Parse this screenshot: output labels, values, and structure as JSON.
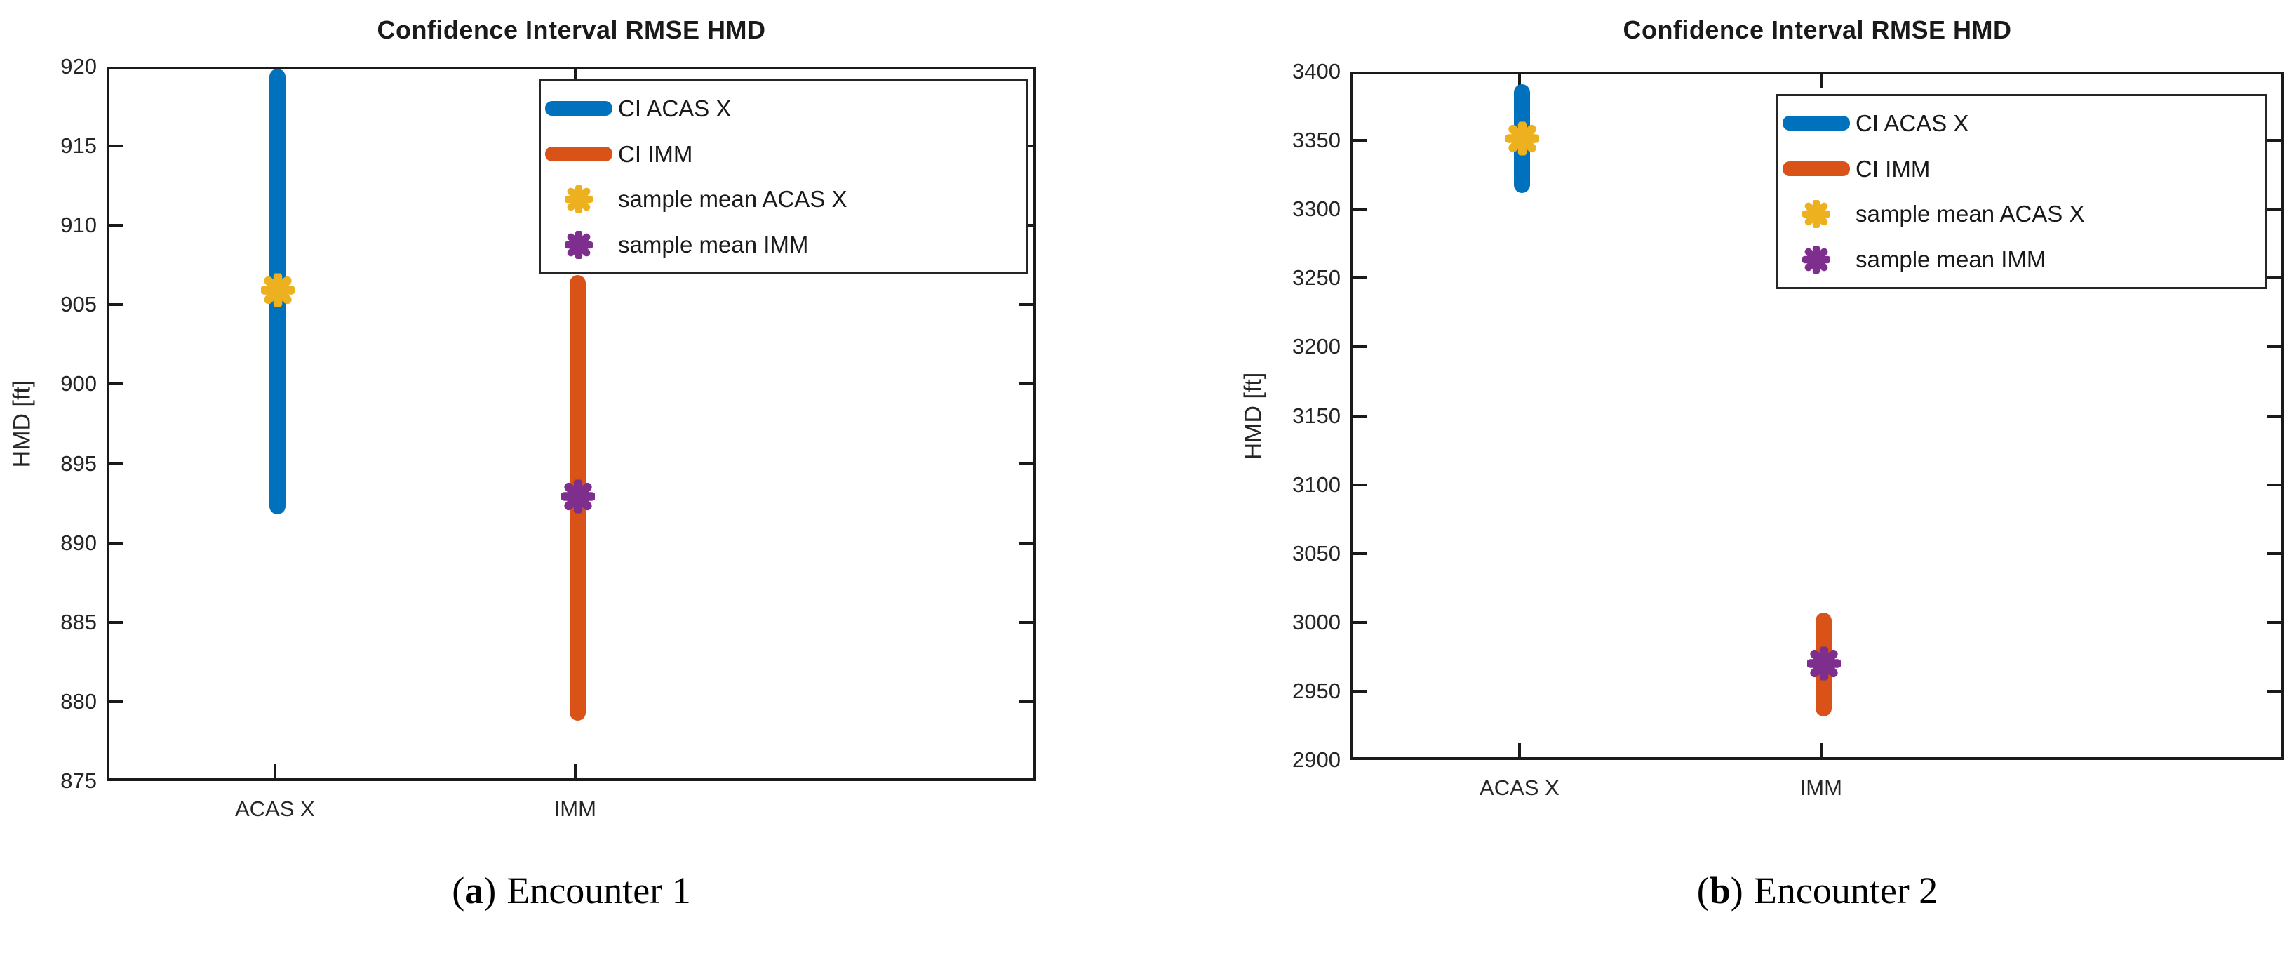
{
  "figure_caption_row": {
    "left": {
      "open": "(",
      "letter": "a",
      "close": ")",
      "text": "Encounter 1"
    },
    "right": {
      "open": "(",
      "letter": "b",
      "close": ")",
      "text": "Encounter 2"
    }
  },
  "colors": {
    "ci_acas_x": "#0072BD",
    "ci_imm": "#D95319",
    "mean_acas_x": "#EDB120",
    "mean_imm": "#7E2F8E",
    "axis": "#1a1a1a"
  },
  "chart_data": [
    {
      "type": "bar",
      "subtype": "confidence-interval-bars-with-mean-markers",
      "title": "Confidence Interval RMSE HMD",
      "xlabel": "",
      "ylabel": "HMD [ft]",
      "categories": [
        "ACAS X",
        "IMM"
      ],
      "ylim": [
        875,
        920
      ],
      "ytick_step": 5,
      "yticks": [
        875,
        880,
        885,
        890,
        895,
        900,
        905,
        910,
        915,
        920
      ],
      "grid": false,
      "legend_position": "top-right-inside",
      "series": [
        {
          "name": "CI ACAS X",
          "kind": "interval",
          "category_index": 0,
          "low": 892.5,
          "high": 919.5,
          "color": "#0072BD"
        },
        {
          "name": "CI IMM",
          "kind": "interval",
          "category_index": 1,
          "low": 879.5,
          "high": 906.5,
          "color": "#D95319"
        },
        {
          "name": "sample mean ACAS X",
          "kind": "point",
          "marker": "asterisk",
          "category_index": 0,
          "value": 906,
          "color": "#EDB120"
        },
        {
          "name": "sample mean IMM",
          "kind": "point",
          "marker": "asterisk",
          "category_index": 1,
          "value": 893,
          "color": "#7E2F8E"
        }
      ],
      "caption": {
        "open": "(",
        "letter": "a",
        "close": ")",
        "text": "Encounter 1"
      }
    },
    {
      "type": "bar",
      "subtype": "confidence-interval-bars-with-mean-markers",
      "title": "Confidence Interval RMSE HMD",
      "xlabel": "",
      "ylabel": "HMD [ft]",
      "categories": [
        "ACAS X",
        "IMM"
      ],
      "ylim": [
        2900,
        3400
      ],
      "ytick_step": 50,
      "yticks": [
        2900,
        2950,
        3000,
        3050,
        3100,
        3150,
        3200,
        3250,
        3300,
        3350,
        3400
      ],
      "grid": false,
      "legend_position": "top-right-inside",
      "series": [
        {
          "name": "CI ACAS X",
          "kind": "interval",
          "category_index": 0,
          "low": 3320,
          "high": 3387,
          "color": "#0072BD"
        },
        {
          "name": "CI IMM",
          "kind": "interval",
          "category_index": 1,
          "low": 2940,
          "high": 3003,
          "color": "#D95319"
        },
        {
          "name": "sample mean ACAS X",
          "kind": "point",
          "marker": "asterisk",
          "category_index": 0,
          "value": 3352,
          "color": "#EDB120"
        },
        {
          "name": "sample mean IMM",
          "kind": "point",
          "marker": "asterisk",
          "category_index": 1,
          "value": 2971,
          "color": "#7E2F8E"
        }
      ],
      "caption": {
        "open": "(",
        "letter": "b",
        "close": ")",
        "text": "Encounter 2"
      }
    }
  ]
}
